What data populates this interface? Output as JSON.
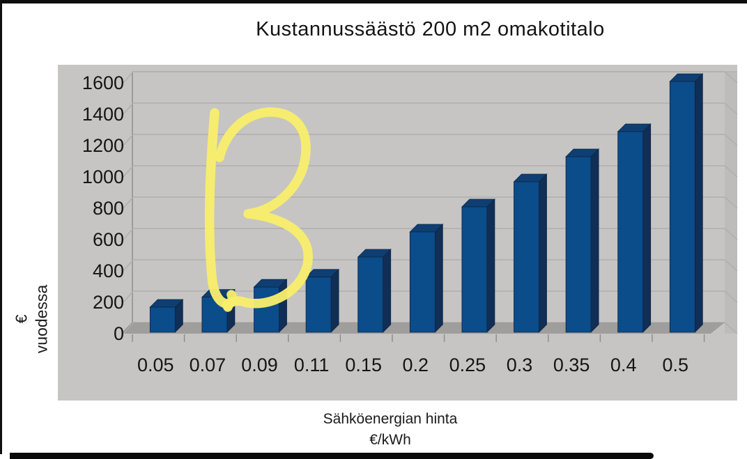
{
  "page": {
    "kind": "photographed document page with 3D bar chart and handwritten marker annotation"
  },
  "chart_data": {
    "type": "bar",
    "title": "Kustannussäästö 200 m2 omakotitalo",
    "categories": [
      "0.05",
      "0.07",
      "0.09",
      "0.11",
      "0.15",
      "0.2",
      "0.25",
      "0.3",
      "0.35",
      "0.4",
      "0.5"
    ],
    "values": [
      160,
      224,
      288,
      352,
      480,
      640,
      800,
      960,
      1120,
      1280,
      1600
    ],
    "xlabel_line1": "Sähköenergian hinta",
    "xlabel_line2": "€/kWh",
    "ylabel_line1": "€",
    "ylabel_line2": "vuodessa",
    "y_ticks": [
      0,
      200,
      400,
      600,
      800,
      1000,
      1200,
      1400,
      1600
    ],
    "ylim": [
      0,
      1600
    ],
    "grid": true,
    "legend": "none",
    "style_3d": true,
    "colors": {
      "bar_front": "#0B4C8A",
      "bar_top": "#0F3E72",
      "bar_side": "#102E56",
      "bar_outline": "#0A2746",
      "plot_background": "#C6C5C3",
      "wall_side": "#BDBCBA",
      "floor": "#9F9E9C",
      "gridline": "#AFAEAC",
      "axis": "#8B8B89",
      "text": "#151515",
      "annotation_yellow": "#F8ED6C",
      "page_edge_black": "#0d0d0d"
    },
    "annotation": {
      "glyph": "B",
      "style": "handwritten highlighter stroke",
      "color": "#F8ED6C"
    }
  }
}
